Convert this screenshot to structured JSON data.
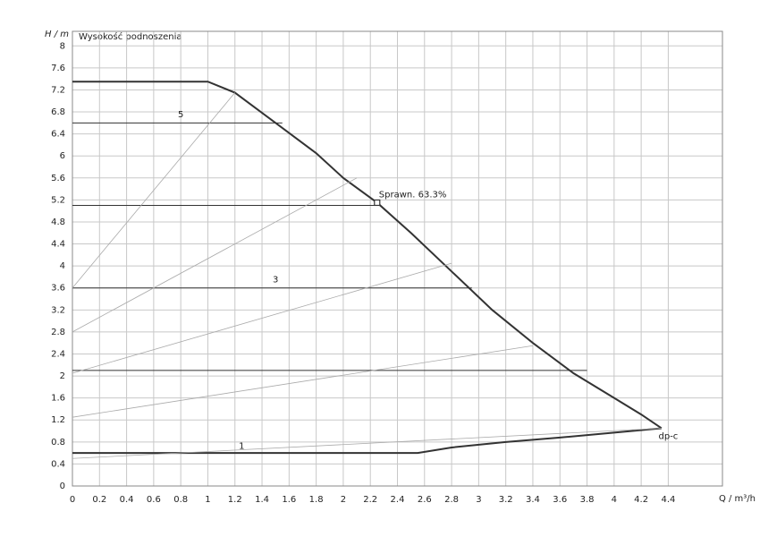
{
  "chart_data": {
    "type": "line",
    "title": "Wysokość podnoszenia",
    "xlabel": "Q / m³/h",
    "ylabel": "H / m",
    "xlim": [
      0,
      4.8
    ],
    "ylim": [
      0,
      8.2
    ],
    "xticks": [
      0,
      0.2,
      0.4,
      0.6,
      0.8,
      1,
      1.2,
      1.4,
      1.6,
      1.8,
      2,
      2.2,
      2.4,
      2.6,
      2.8,
      3,
      3.2,
      3.4,
      3.6,
      3.8,
      4,
      4.2,
      4.4
    ],
    "yticks": [
      0,
      0.4,
      0.8,
      1.2,
      1.6,
      2,
      2.4,
      2.8,
      3.2,
      3.6,
      4,
      4.4,
      4.8,
      5.2,
      5.6,
      6,
      6.4,
      6.8,
      7.2,
      7.6,
      8
    ],
    "grid": true,
    "series": [
      {
        "color": "#333333",
        "x": [
          0,
          1.0,
          1.2,
          1.5,
          1.8,
          2.0,
          2.25,
          2.5,
          2.8,
          3.1,
          3.4,
          3.7,
          4.0,
          4.2,
          4.35
        ],
        "values": [
          7.35,
          7.35,
          7.15,
          6.6,
          6.05,
          5.6,
          5.15,
          4.6,
          3.9,
          3.2,
          2.6,
          2.05,
          1.6,
          1.3,
          1.05
        ]
      },
      {
        "color": "#333333",
        "x": [
          0,
          2.55,
          2.8,
          3.2,
          3.6,
          4.0,
          4.35
        ],
        "values": [
          0.6,
          0.6,
          0.7,
          0.8,
          0.88,
          0.97,
          1.05
        ]
      },
      {
        "color": "#333333",
        "x": [
          0,
          1.55
        ],
        "values": [
          6.6,
          6.6
        ]
      },
      {
        "color": "#333333",
        "x": [
          0,
          2.25
        ],
        "values": [
          5.1,
          5.1
        ]
      },
      {
        "color": "#333333",
        "x": [
          0,
          2.95
        ],
        "values": [
          3.6,
          3.6
        ]
      },
      {
        "color": "#333333",
        "x": [
          0,
          3.8
        ],
        "values": [
          2.1,
          2.1
        ]
      },
      {
        "color": "#aaaaaa",
        "x": [
          0,
          1.2
        ],
        "values": [
          3.6,
          7.15
        ]
      },
      {
        "color": "#aaaaaa",
        "x": [
          0,
          2.1
        ],
        "values": [
          2.8,
          5.6
        ]
      },
      {
        "color": "#aaaaaa",
        "x": [
          0,
          2.8
        ],
        "values": [
          2.05,
          4.05
        ]
      },
      {
        "color": "#aaaaaa",
        "x": [
          0,
          3.4
        ],
        "values": [
          1.25,
          2.55
        ]
      },
      {
        "color": "#aaaaaa",
        "x": [
          0,
          4.35
        ],
        "values": [
          0.5,
          1.05
        ]
      }
    ],
    "marker": {
      "label": "Sprawn.  63.3%",
      "x": 2.25,
      "y": 5.15
    },
    "annotations": [
      {
        "text": "5",
        "x": 0.8,
        "y": 6.75
      },
      {
        "text": "3",
        "x": 1.5,
        "y": 3.75
      },
      {
        "text": "1",
        "x": 1.25,
        "y": 0.72
      },
      {
        "text": "dp-c",
        "x": 4.4,
        "y": 0.9
      }
    ]
  }
}
